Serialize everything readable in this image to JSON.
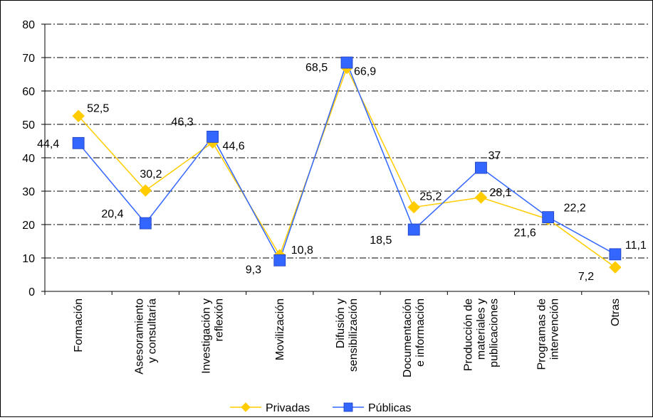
{
  "chart_data": {
    "type": "line",
    "title": "",
    "xlabel": "",
    "ylabel": "",
    "ylim": [
      0,
      80
    ],
    "yticks": [
      0,
      10,
      20,
      30,
      40,
      50,
      60,
      70,
      80
    ],
    "grid": "horizontal-dashed",
    "legend_position": "bottom",
    "categories": [
      [
        "Formación"
      ],
      [
        "Asesoramiento",
        "y consultaría"
      ],
      [
        "Investigación y",
        "reflexión"
      ],
      [
        "Movilización"
      ],
      [
        "Difusión y",
        "sensibilización"
      ],
      [
        "Documentación",
        "e información"
      ],
      [
        "Producción de",
        "materiales y",
        "publicaciones"
      ],
      [
        "Programas de",
        "intervención"
      ],
      [
        "Otras"
      ]
    ],
    "series": [
      {
        "name": "Privadas",
        "color": "#ffcc00",
        "marker": "diamond",
        "values": [
          52.5,
          30.2,
          44.6,
          10.8,
          66.9,
          25.2,
          28.1,
          21.6,
          7.2
        ],
        "labels": [
          "52,5",
          "30,2",
          "44,6",
          "10,8",
          "66,9",
          "25,2",
          "28,1",
          "21,6",
          "7,2"
        ]
      },
      {
        "name": "Públicas",
        "color": "#3366ff",
        "marker": "square",
        "values": [
          44.4,
          20.4,
          46.3,
          9.3,
          68.5,
          18.5,
          37,
          22.2,
          11.1
        ],
        "labels": [
          "44,4",
          "20,4",
          "46,3",
          "9,3",
          "68,5",
          "18,5",
          "37",
          "22,2",
          "11,1"
        ]
      }
    ]
  }
}
